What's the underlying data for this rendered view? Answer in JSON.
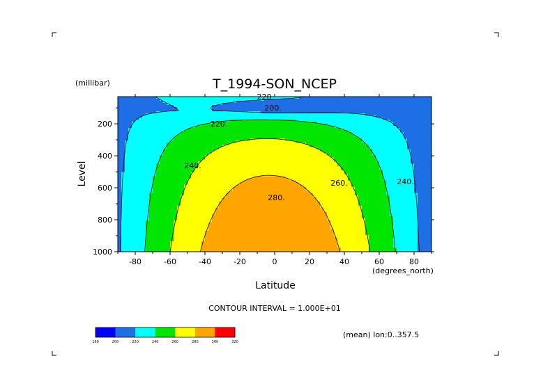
{
  "chart_data": {
    "type": "contour",
    "title": "T_1994-SON_NCEP",
    "xlabel": "Latitude",
    "x_units": "(degrees_north)",
    "ylabel": "Level",
    "y_units": "(millibar)",
    "xlim": [
      -90,
      90
    ],
    "ylim": [
      1000,
      30
    ],
    "y_inverted": true,
    "x_ticks": [
      -80,
      -60,
      -40,
      -20,
      0,
      20,
      40,
      60,
      80
    ],
    "y_ticks": [
      200,
      400,
      600,
      800,
      1000
    ],
    "contour_interval_text": "CONTOUR INTERVAL = 1.000E+01",
    "contour_interval": 10,
    "footnote": "(mean) lon:0..357.5",
    "contour_labels": [
      {
        "text": "220",
        "lat": -6,
        "lev": 30
      },
      {
        "text": "200.",
        "lat": -1,
        "lev": 100
      },
      {
        "text": "220.",
        "lat": -32,
        "lev": 200
      },
      {
        "text": "240.",
        "lat": -47,
        "lev": 460
      },
      {
        "text": "260.",
        "lat": 37,
        "lev": 570
      },
      {
        "text": "240.",
        "lat": 75,
        "lev": 560
      },
      {
        "text": "280.",
        "lat": 1,
        "lev": 660
      }
    ],
    "colorbar": {
      "ticks": [
        "180",
        "200",
        "220",
        "240",
        "260",
        "280",
        "300",
        "320"
      ],
      "colors": [
        "#0000ff",
        "#1e6ee6",
        "#00ffff",
        "#00e600",
        "#ffff00",
        "#ffa500",
        "#ff0000"
      ]
    },
    "fill_colors": {
      "lt200": "#0000e6",
      "200_220": "#1e6ee6",
      "220_240": "#00ffff",
      "240_260": "#00e600",
      "260_280": "#ffff00",
      "280_300": "#ffa500"
    }
  }
}
